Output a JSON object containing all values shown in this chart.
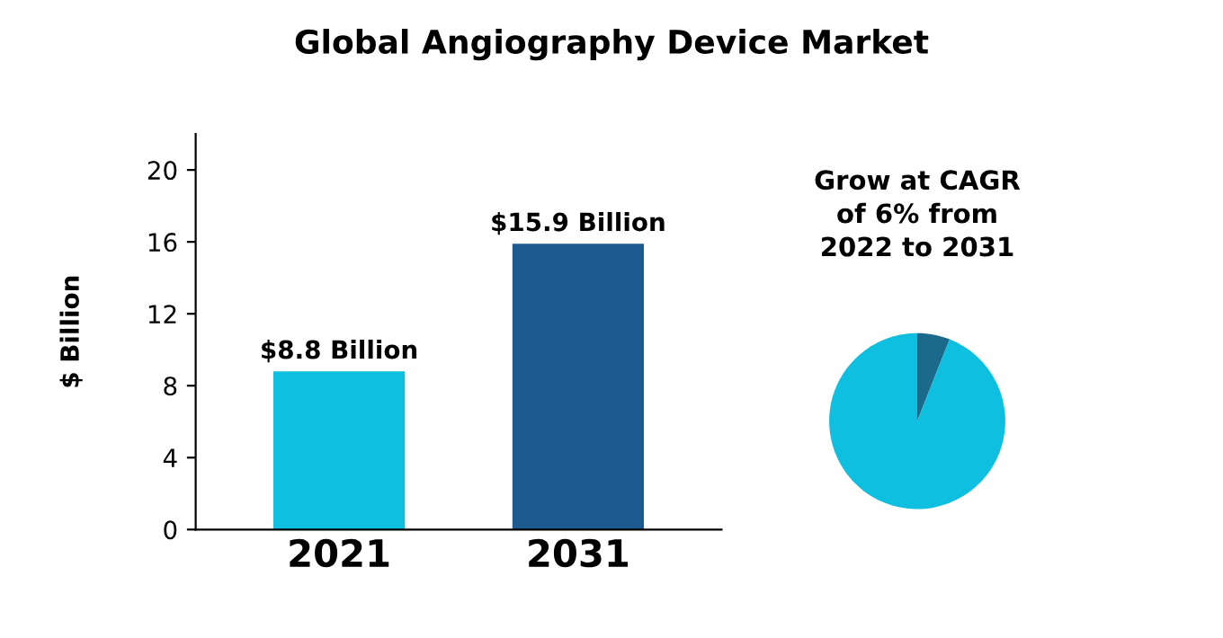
{
  "chart_data": [
    {
      "type": "bar",
      "title": "Global Angiography Device Market",
      "ylabel": "$ Billion",
      "categories": [
        "2021",
        "2031"
      ],
      "values": [
        8.8,
        15.9
      ],
      "colors": [
        "#0fbfe0",
        "#1c5a8f"
      ],
      "value_labels": [
        "$8.8 Billion",
        "$15.9 Billion"
      ],
      "ylim": [
        0,
        22
      ],
      "yticks": [
        0,
        4,
        8,
        12,
        16,
        20
      ],
      "grid": false
    },
    {
      "type": "pie",
      "title": "Grow at CAGR\nof 6% from\n2022 to 2031",
      "categories": [
        null,
        null
      ],
      "values": [
        6,
        94
      ],
      "colors": [
        "#1b6a8c",
        "#0fbfe0"
      ]
    }
  ]
}
